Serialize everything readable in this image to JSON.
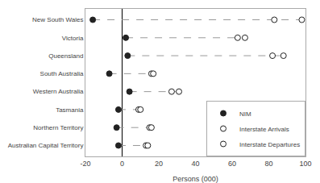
{
  "chart_data": {
    "type": "dot",
    "categories": [
      "New South Wales",
      "Victoria",
      "Queensland",
      "South Australia",
      "Western Australia",
      "Tasmania",
      "Northern Territory",
      "Australian Capital Territory"
    ],
    "series": [
      {
        "name": "NIM",
        "color": "#222222",
        "marker": "filled",
        "values": [
          -16,
          2,
          3,
          -7,
          4,
          -2,
          -3,
          -2
        ]
      },
      {
        "name": "Interstate Arrivals",
        "color": "#222222",
        "marker": "open",
        "values": [
          83,
          63,
          82,
          16,
          27,
          9,
          15,
          13
        ]
      },
      {
        "name": "Interstate Departures",
        "color": "#222222",
        "marker": "open",
        "values": [
          98,
          67,
          88,
          17,
          31,
          10,
          16,
          14
        ]
      }
    ],
    "xlabel": "Persons (000)",
    "xlim": [
      -20,
      100
    ],
    "xticks": [
      -20,
      0,
      20,
      40,
      60,
      80,
      100
    ],
    "orientation": "horizontal",
    "line_style": "dashed",
    "legend": "lower right",
    "grid": false
  }
}
